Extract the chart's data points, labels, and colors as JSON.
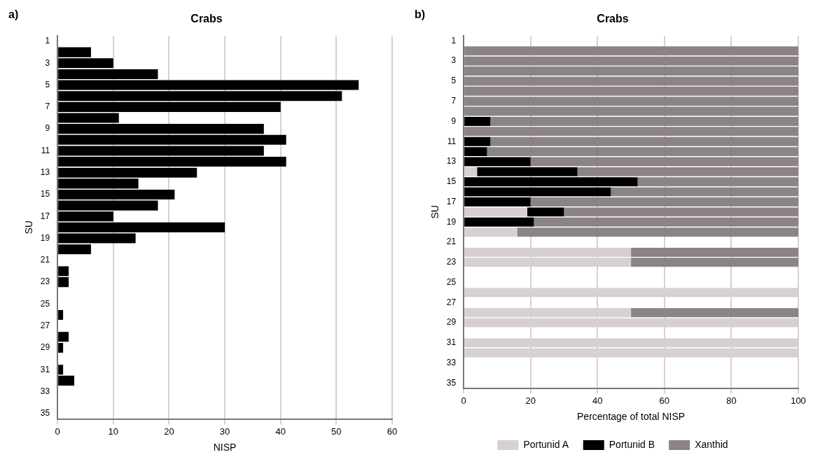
{
  "chart_data": [
    {
      "type": "bar",
      "orientation": "horizontal",
      "title": "Crabs",
      "xlabel": "NISP",
      "ylabel": "SU",
      "annotations": [
        "a)"
      ],
      "categories": [
        "1",
        null,
        "3",
        null,
        "5",
        null,
        "7",
        null,
        "9",
        null,
        "11",
        null,
        "13",
        null,
        "15",
        null,
        "17",
        null,
        "19",
        null,
        "21",
        null,
        "23",
        null,
        "25",
        null,
        "27",
        null,
        "29",
        null,
        "31",
        null,
        "33",
        null,
        "35"
      ],
      "values": [
        0,
        6,
        10,
        18,
        54,
        51,
        40,
        11,
        37,
        41,
        37,
        41,
        25,
        14.5,
        21,
        18,
        10,
        30,
        14,
        6,
        0,
        2,
        2,
        0,
        0,
        1,
        0,
        2,
        1,
        0,
        1,
        3,
        0,
        0,
        0
      ],
      "color": "#000000",
      "xlim": [
        0,
        60
      ],
      "xticks": [
        0,
        10,
        20,
        30,
        40,
        50,
        60
      ],
      "grid": "x",
      "legend": false
    },
    {
      "type": "bar",
      "orientation": "horizontal",
      "stacked": true,
      "title": "Crabs",
      "xlabel": "Percentage of total NISP",
      "ylabel": "SU",
      "annotations": [
        "b)"
      ],
      "categories": [
        "1",
        null,
        "3",
        null,
        "5",
        null,
        "7",
        null,
        "9",
        null,
        "11",
        null,
        "13",
        null,
        "15",
        null,
        "17",
        null,
        "19",
        null,
        "21",
        null,
        "23",
        null,
        "25",
        null,
        "27",
        null,
        "29",
        null,
        "31",
        null,
        "33",
        null,
        "35"
      ],
      "series": [
        {
          "name": "Portunid A",
          "color": "#d6d0d0",
          "values": [
            null,
            0,
            0,
            0,
            0,
            0,
            0,
            0,
            0,
            0,
            0,
            0,
            0,
            4,
            0,
            0,
            0,
            19,
            0,
            16,
            null,
            50,
            50,
            null,
            null,
            100,
            null,
            50,
            100,
            null,
            100,
            100,
            null,
            null,
            null
          ]
        },
        {
          "name": "Portunid B",
          "color": "#000000",
          "values": [
            null,
            0,
            0,
            0,
            0,
            0,
            0,
            0,
            8,
            0,
            8,
            7,
            20,
            30,
            52,
            44,
            20,
            11,
            21,
            0,
            null,
            0,
            0,
            null,
            null,
            0,
            null,
            0,
            0,
            null,
            0,
            0,
            null,
            null,
            null
          ]
        },
        {
          "name": "Xanthid",
          "color": "#8c8484",
          "values": [
            null,
            100,
            100,
            100,
            100,
            100,
            100,
            100,
            92,
            100,
            92,
            93,
            80,
            66,
            48,
            56,
            80,
            70,
            79,
            84,
            null,
            50,
            50,
            null,
            null,
            0,
            null,
            50,
            0,
            null,
            0,
            0,
            null,
            null,
            null
          ]
        }
      ],
      "xlim": [
        0,
        100
      ],
      "xticks": [
        0,
        20,
        40,
        60,
        80,
        100
      ],
      "grid": "x",
      "legend": "bottom"
    }
  ]
}
